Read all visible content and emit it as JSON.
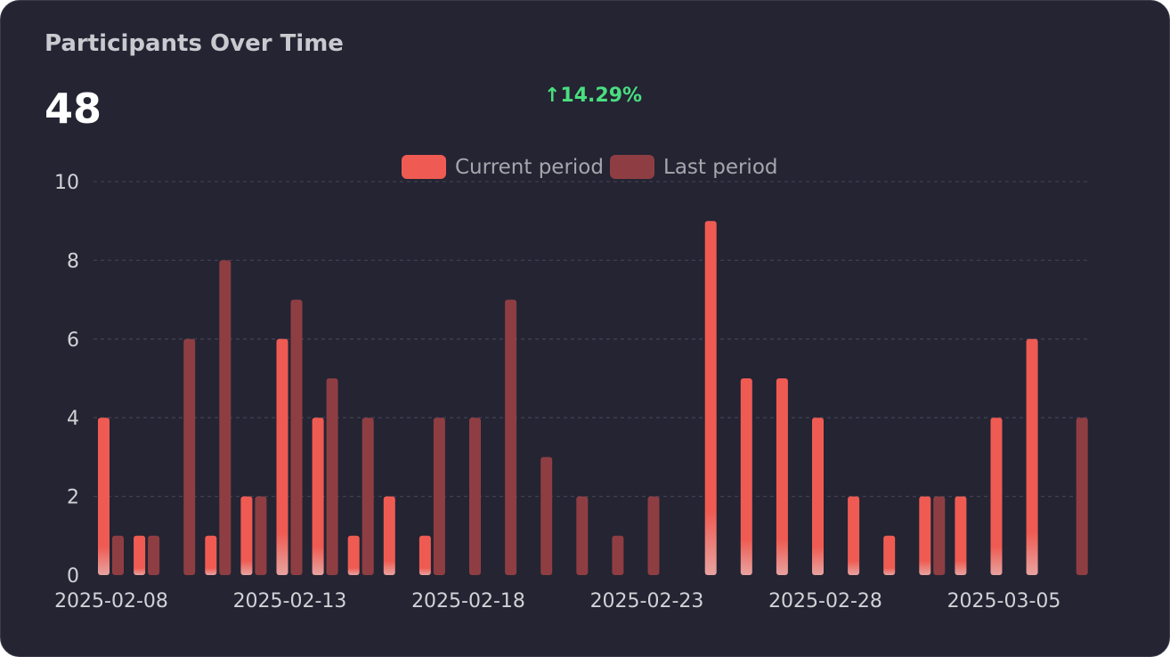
{
  "card": {
    "title": "Participants Over Time",
    "total": "48",
    "change": "↑14.29%"
  },
  "colors": {
    "current": "#ef5b52",
    "last": "#8e3e42",
    "change_positive": "#4ade80",
    "background": "#242433"
  },
  "chart_data": {
    "type": "bar",
    "legend": {
      "placement": "top-center",
      "entries": [
        "Current period",
        "Last period"
      ]
    },
    "grid": true,
    "ylim": [
      0,
      10
    ],
    "yticks": [
      0,
      2,
      4,
      6,
      8,
      10
    ],
    "x_tick_labels": [
      "2025-02-08",
      "2025-02-13",
      "2025-02-18",
      "2025-02-23",
      "2025-02-28",
      "2025-03-05"
    ],
    "categories": [
      "2025-02-08",
      "2025-02-09",
      "2025-02-10",
      "2025-02-11",
      "2025-02-12",
      "2025-02-13",
      "2025-02-14",
      "2025-02-15",
      "2025-02-16",
      "2025-02-17",
      "2025-02-18",
      "2025-02-19",
      "2025-02-20",
      "2025-02-21",
      "2025-02-22",
      "2025-02-23",
      "2025-02-24",
      "2025-02-25",
      "2025-02-26",
      "2025-02-27",
      "2025-02-28",
      "2025-03-01",
      "2025-03-02",
      "2025-03-03",
      "2025-03-04",
      "2025-03-05",
      "2025-03-06",
      "2025-03-07",
      "2025-03-08"
    ],
    "series": [
      {
        "name": "Current period",
        "values": [
          4,
          1,
          0,
          1,
          2,
          6,
          4,
          1,
          2,
          1,
          0,
          0,
          0,
          0,
          0,
          0,
          0,
          9,
          5,
          5,
          4,
          2,
          1,
          2,
          2,
          4,
          6,
          0,
          0
        ]
      },
      {
        "name": "Last period",
        "values": [
          1,
          1,
          6,
          8,
          2,
          7,
          5,
          4,
          0,
          4,
          4,
          7,
          3,
          2,
          1,
          2,
          0,
          0,
          0,
          0,
          0,
          0,
          0,
          2,
          0,
          0,
          0,
          4,
          0
        ]
      }
    ]
  }
}
